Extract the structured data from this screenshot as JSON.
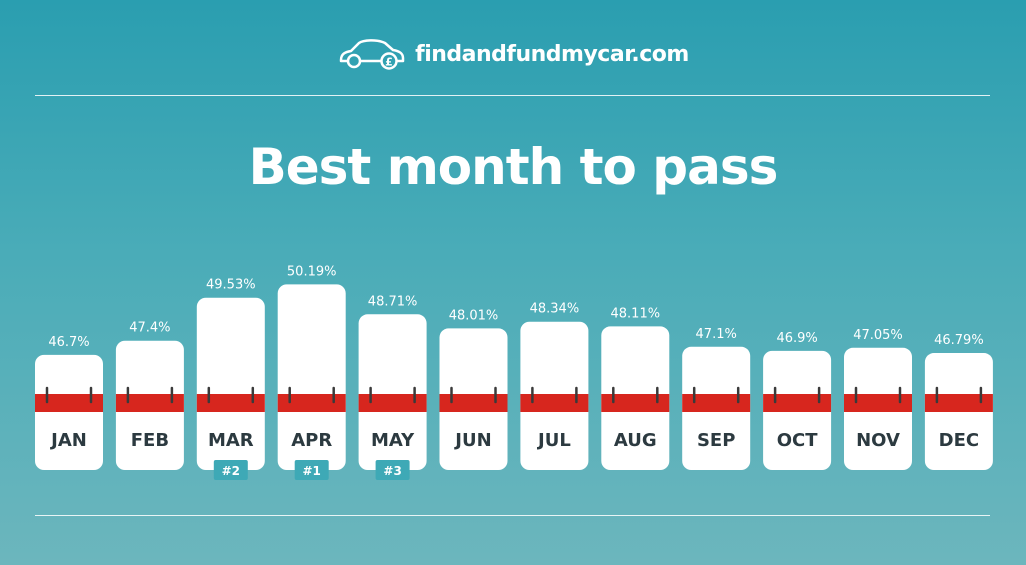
{
  "brand": {
    "name": "findandfundmycar.com",
    "logo_icon": "car-pound-icon"
  },
  "title": "Best month to pass",
  "colors": {
    "background_top": "#2a9eb0",
    "background_bottom": "#6cb6bd",
    "card": "#ffffff",
    "ring_band": "#d7261e",
    "month_label": "#2c3a40",
    "rank_badge": "#3ea9b6"
  },
  "chart_data": {
    "type": "bar",
    "title": "Best month to pass",
    "categories": [
      "JAN",
      "FEB",
      "MAR",
      "APR",
      "MAY",
      "JUN",
      "JUL",
      "AUG",
      "SEP",
      "OCT",
      "NOV",
      "DEC"
    ],
    "values": [
      46.7,
      47.4,
      49.53,
      50.19,
      48.71,
      48.01,
      48.34,
      48.11,
      47.1,
      46.9,
      47.05,
      46.79
    ],
    "value_labels": [
      "46.7%",
      "47.4%",
      "49.53%",
      "50.19%",
      "48.71%",
      "48.01%",
      "48.34%",
      "48.11%",
      "47.1%",
      "46.9%",
      "47.05%",
      "46.79%"
    ],
    "ranks": [
      {
        "category": "APR",
        "label": "#1"
      },
      {
        "category": "MAR",
        "label": "#2"
      },
      {
        "category": "MAY",
        "label": "#3"
      }
    ],
    "unit": "%",
    "ylim": [
      41,
      50.19
    ],
    "grid": false,
    "legend": "none"
  }
}
